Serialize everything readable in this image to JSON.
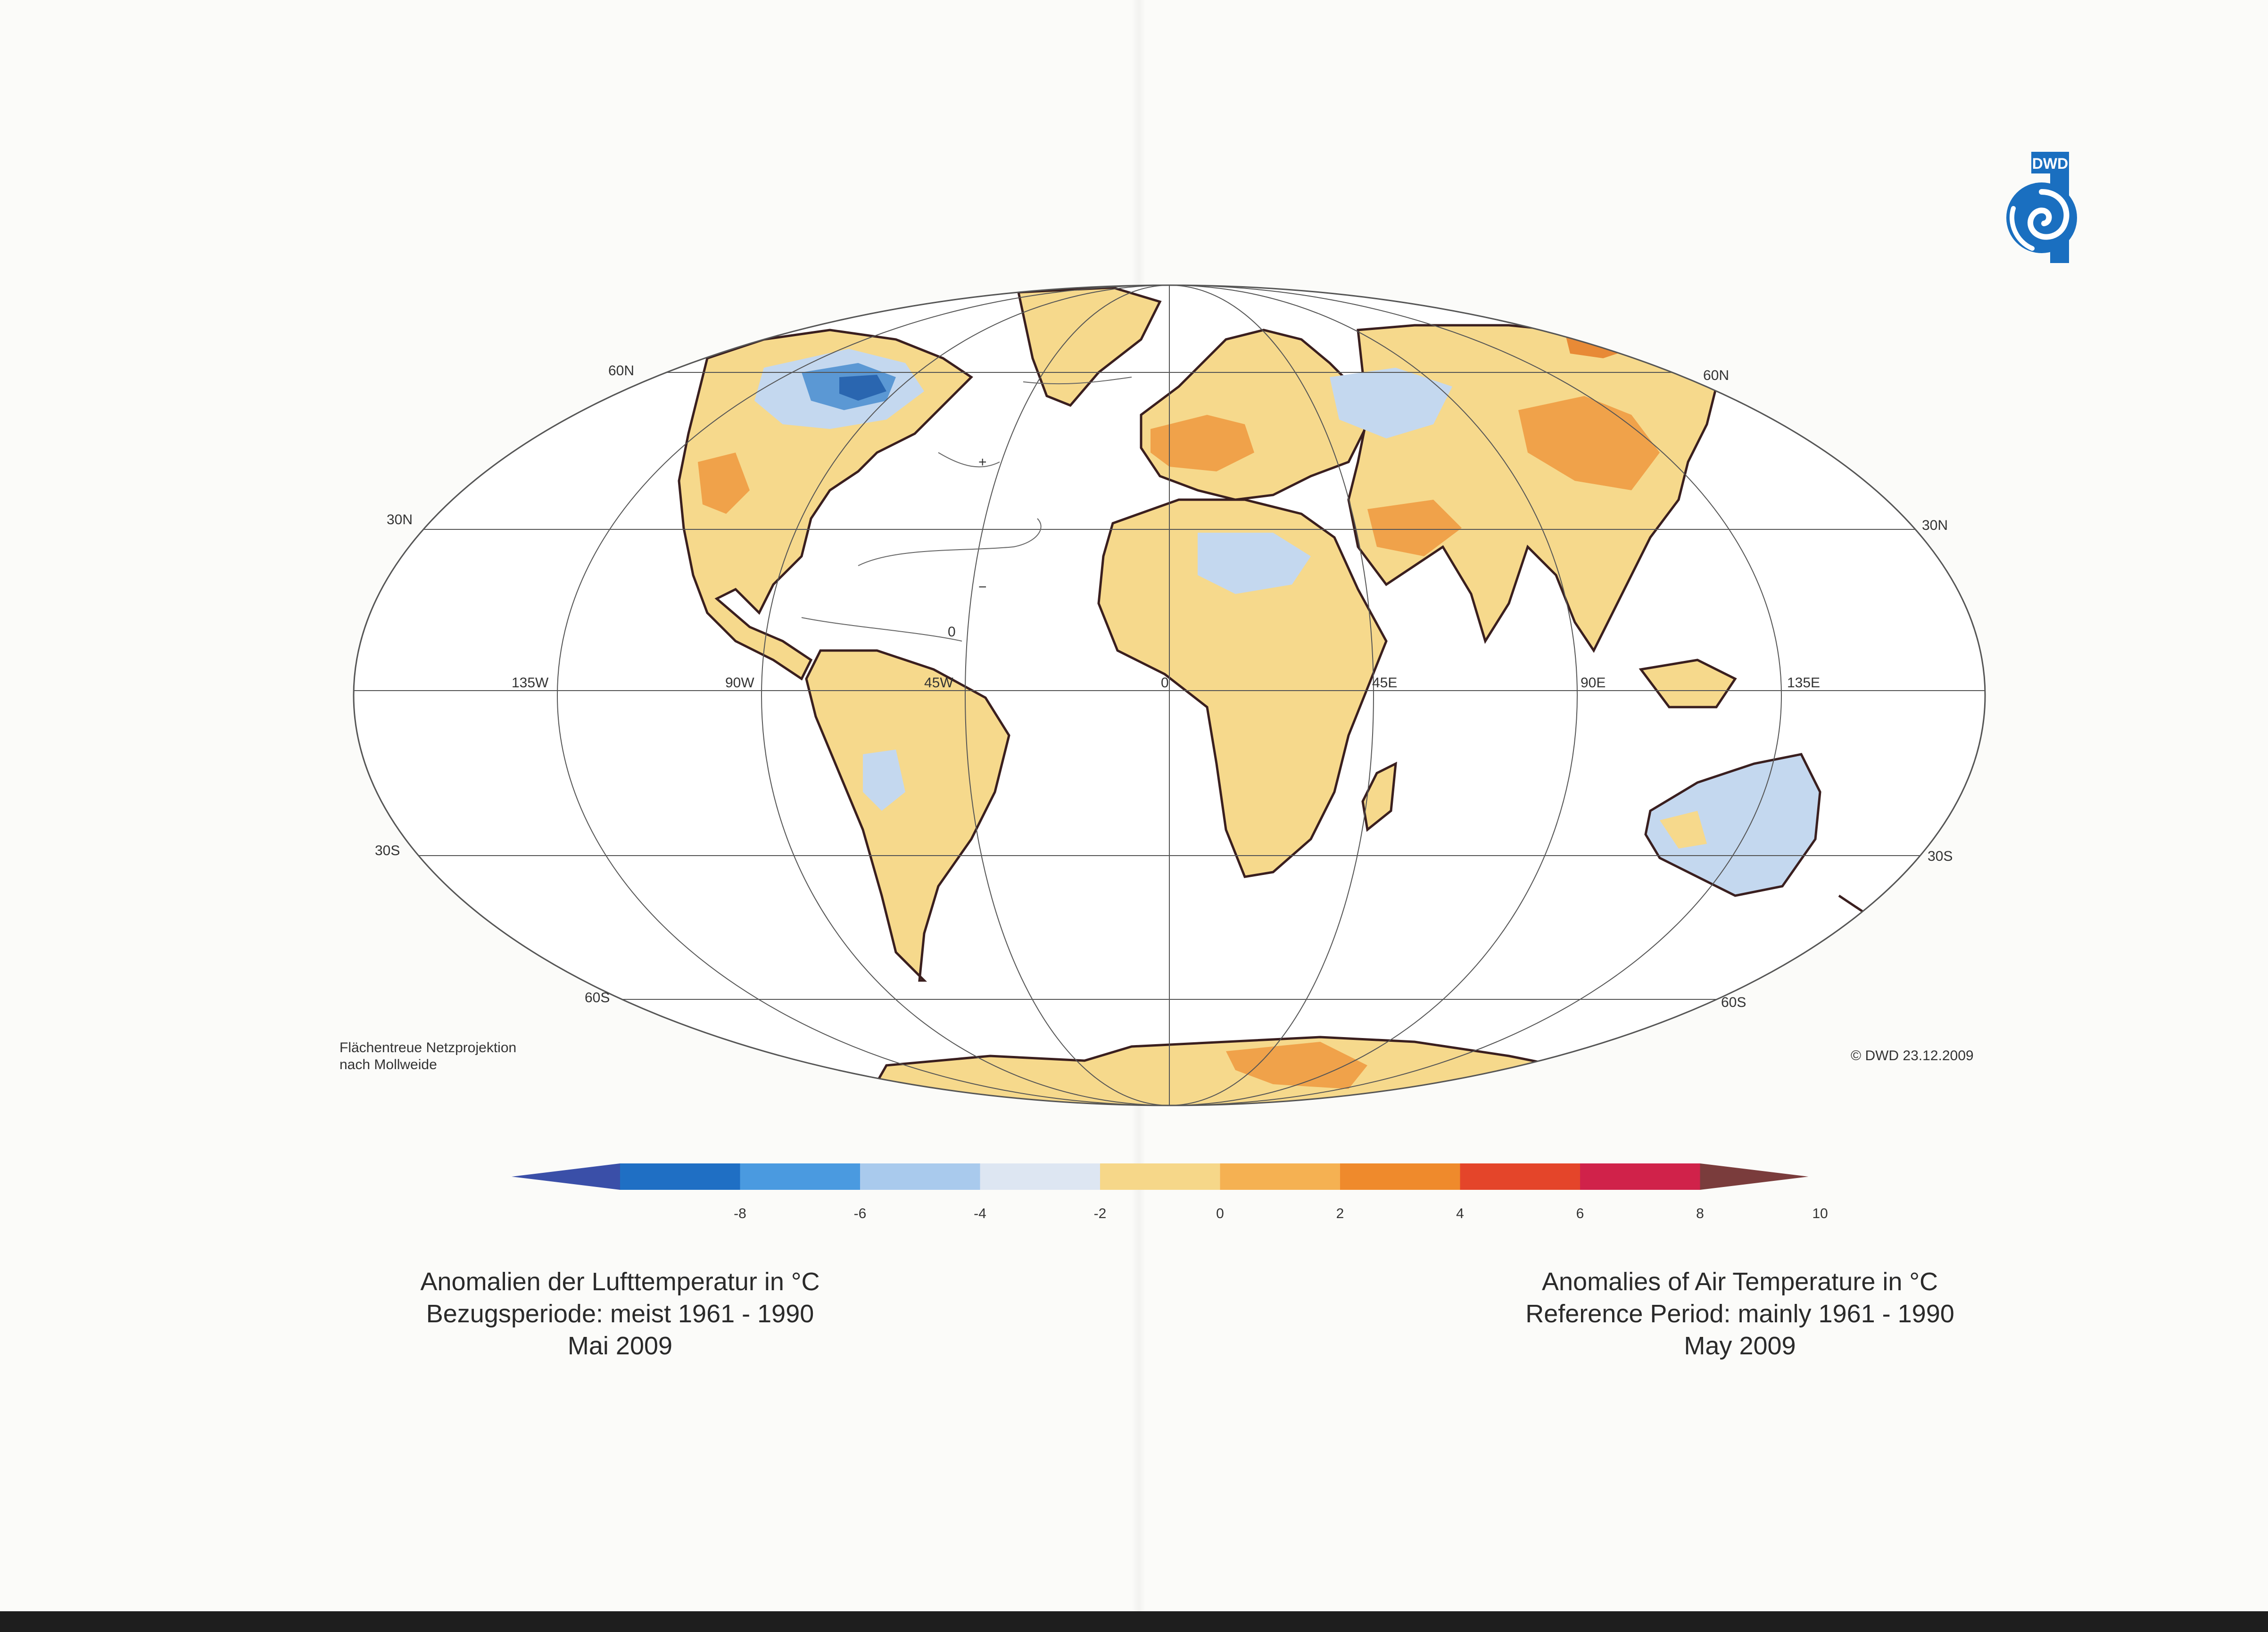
{
  "logo": {
    "text": "DWD",
    "color": "#1a6fc0"
  },
  "projection_note": [
    "Flächentreue Netzprojektion",
    "nach Mollweide"
  ],
  "copyright": "© DWD 23.12.2009",
  "latitude_labels": {
    "n60_left": "60N",
    "n60_right": "60N",
    "n30_left": "30N",
    "n30_right": "30N",
    "s30_left": "30S",
    "s30_right": "30S",
    "s60_left": "60S",
    "s60_right": "60S"
  },
  "longitude_labels": {
    "w135": "135W",
    "w90": "90W",
    "w45": "45W",
    "zero": "0",
    "e45": "45E",
    "e90": "90E",
    "e135": "135E"
  },
  "contour_labels": {
    "plus": "+",
    "minus": "−",
    "zero": "0"
  },
  "legend": {
    "ticks": [
      "-8",
      "-6",
      "-4",
      "-2",
      "0",
      "2",
      "4",
      "6",
      "8",
      "10"
    ],
    "colors": [
      "#3a4fa8",
      "#1f6fc4",
      "#4a9ae0",
      "#a9caed",
      "#dde6f2",
      "#f6d789",
      "#f5b152",
      "#ef8a2c",
      "#e4452a",
      "#d0224a",
      "#7a3c3c"
    ]
  },
  "caption_de": [
    "Anomalien der Lufttemperatur in °C",
    "Bezugsperiode: meist 1961 - 1990",
    "Mai 2009"
  ],
  "caption_en": [
    "Anomalies of Air Temperature in °C",
    "Reference Period: mainly 1961 - 1990",
    "May 2009"
  ]
}
